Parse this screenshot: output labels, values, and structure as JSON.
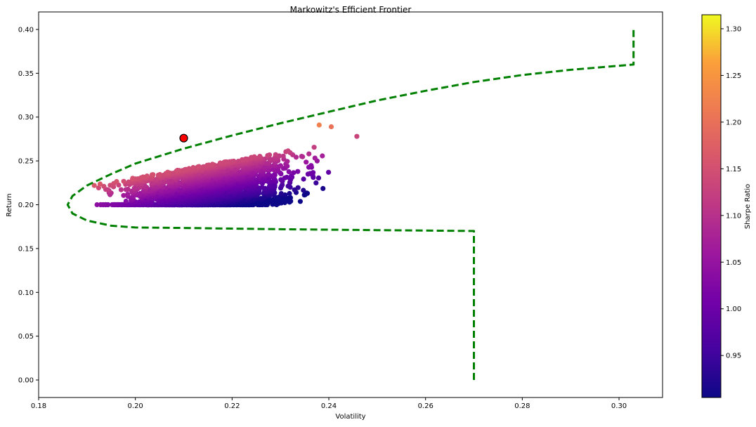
{
  "chart_data": {
    "type": "scatter",
    "title": "Markowitz's Efficient Frontier",
    "xlabel": "Volatility",
    "ylabel": "Return",
    "xlim": [
      0.18,
      0.309
    ],
    "ylim": [
      -0.02,
      0.42
    ],
    "x_ticks": [
      "0.18",
      "0.20",
      "0.22",
      "0.24",
      "0.26",
      "0.28",
      "0.30"
    ],
    "x_tick_values": [
      0.18,
      0.2,
      0.22,
      0.24,
      0.26,
      0.28,
      0.3
    ],
    "y_ticks": [
      "0.00",
      "0.05",
      "0.10",
      "0.15",
      "0.20",
      "0.25",
      "0.30",
      "0.35",
      "0.40"
    ],
    "y_tick_values": [
      0.0,
      0.05,
      0.1,
      0.15,
      0.2,
      0.25,
      0.3,
      0.35,
      0.4
    ],
    "grid": false,
    "colorbar": {
      "label": "Sharpe Ratio",
      "colormap": "plasma",
      "range": [
        0.905,
        1.315
      ],
      "ticks": [
        "0.95",
        "1.00",
        "1.05",
        "1.10",
        "1.15",
        "1.20",
        "1.25",
        "1.30"
      ],
      "tick_values": [
        0.95,
        1.0,
        1.05,
        1.1,
        1.15,
        1.2,
        1.25,
        1.3
      ]
    },
    "portfolio_cloud": {
      "description_volatility_range": [
        0.192,
        0.246
      ],
      "return_range": [
        0.2,
        0.291
      ],
      "sharpe_range": [
        0.905,
        1.315
      ]
    },
    "highlighted_portfolio": {
      "volatility": 0.21,
      "return": 0.276,
      "color": "#ff0000"
    },
    "frontier": {
      "color": "#008000",
      "style": "dashed",
      "points": [
        [
          0.27,
          0.0
        ],
        [
          0.27,
          0.17
        ],
        [
          0.25,
          0.171
        ],
        [
          0.23,
          0.172
        ],
        [
          0.21,
          0.1735
        ],
        [
          0.2,
          0.174
        ],
        [
          0.195,
          0.176
        ],
        [
          0.19,
          0.182
        ],
        [
          0.187,
          0.19
        ],
        [
          0.186,
          0.2
        ],
        [
          0.187,
          0.21
        ],
        [
          0.19,
          0.222
        ],
        [
          0.195,
          0.235
        ],
        [
          0.2,
          0.247
        ],
        [
          0.21,
          0.264
        ],
        [
          0.22,
          0.279
        ],
        [
          0.23,
          0.293
        ],
        [
          0.24,
          0.306
        ],
        [
          0.25,
          0.319
        ],
        [
          0.26,
          0.33
        ],
        [
          0.27,
          0.34
        ],
        [
          0.28,
          0.348
        ],
        [
          0.29,
          0.354
        ],
        [
          0.303,
          0.36
        ],
        [
          0.303,
          0.4
        ]
      ]
    }
  }
}
